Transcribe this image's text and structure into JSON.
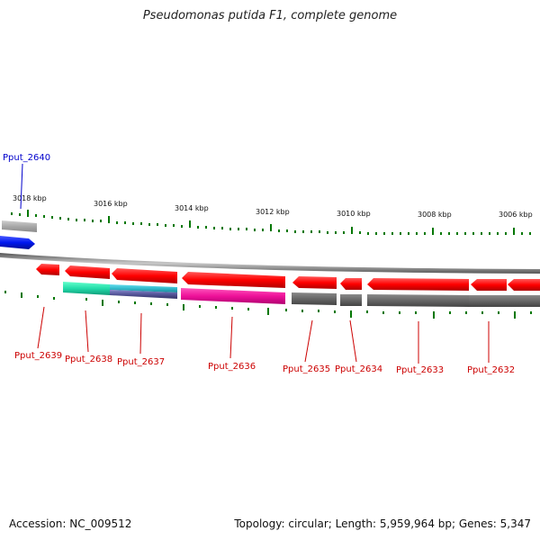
{
  "title": "Pseudomonas putida F1, complete genome",
  "footer": {
    "accession": "Accession: NC_009512",
    "summary": "Topology: circular; Length: 5,959,964 bp; Genes: 5,347"
  },
  "scale_labels": [
    "3018 kbp",
    "3016 kbp",
    "3014 kbp",
    "3012 kbp",
    "3010 kbp",
    "3008 kbp",
    "3006 kbp"
  ],
  "genes": [
    {
      "id": "Pput_2640",
      "color": "#0000cc"
    },
    {
      "id": "Pput_2639",
      "color": "#cc0000"
    },
    {
      "id": "Pput_2638",
      "color": "#cc0000"
    },
    {
      "id": "Pput_2637",
      "color": "#cc0000"
    },
    {
      "id": "Pput_2636",
      "color": "#cc0000"
    },
    {
      "id": "Pput_2635",
      "color": "#cc0000"
    },
    {
      "id": "Pput_2634",
      "color": "#cc0000"
    },
    {
      "id": "Pput_2633",
      "color": "#cc0000"
    },
    {
      "id": "Pput_2632",
      "color": "#cc0000"
    }
  ],
  "colors": {
    "forward_cds": "#ff0000",
    "reverse_cds": "#0022ee",
    "backbone": "#777777",
    "tick": "#007700",
    "cog_green": "#22ddaa",
    "cog_teal": "#33bbcc",
    "cog_purple": "#555599",
    "cog_magenta": "#ee1199",
    "cog_gray": "#666666",
    "cog_lightgray": "#bbbbbb"
  }
}
